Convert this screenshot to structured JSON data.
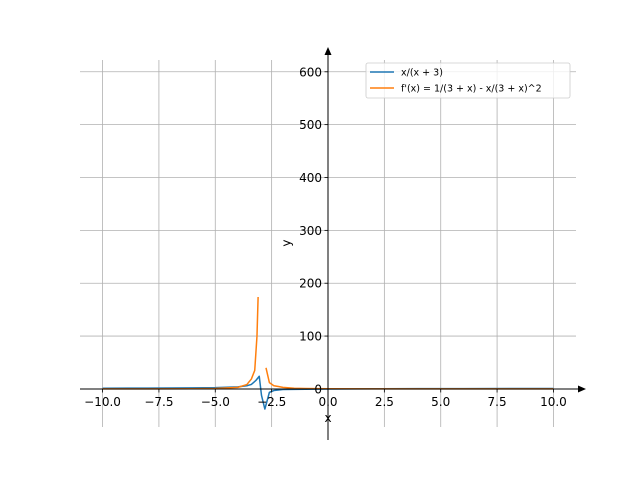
{
  "chart_data": {
    "type": "line",
    "xlabel": "x",
    "ylabel": "y",
    "xlim": [
      -11.0,
      11.0
    ],
    "ylim": [
      -72,
      645
    ],
    "x_ticks": [
      -10.0,
      -7.5,
      -5.0,
      -2.5,
      0.0,
      2.5,
      5.0,
      7.5,
      10.0
    ],
    "x_tick_labels": [
      "−10.0",
      "−7.5",
      "−5.0",
      "−2.5",
      "0.0",
      "2.5",
      "5.0",
      "7.5",
      "10.0"
    ],
    "y_ticks": [
      0,
      100,
      200,
      300,
      400,
      500,
      600
    ],
    "y_tick_labels": [
      "0",
      "100",
      "200",
      "300",
      "400",
      "500",
      "600"
    ],
    "grid": true,
    "legend_position": "top-right",
    "series": [
      {
        "name": "x/(x + 3)",
        "color": "#1f77b4",
        "x": [
          -10,
          -8,
          -6,
          -5,
          -4,
          -3.6,
          -3.4,
          -3.2,
          -3.05,
          -2.95,
          -2.8,
          -2.6,
          -2.4,
          -2,
          -1,
          0,
          2,
          4,
          6,
          8,
          10
        ],
        "y": [
          1.43,
          1.6,
          2.0,
          2.5,
          4.0,
          6.0,
          8.5,
          16.0,
          24.0,
          -12.0,
          -38.0,
          -6.5,
          -3.0,
          -1.0,
          -0.5,
          0,
          0.4,
          0.57,
          0.67,
          0.73,
          0.77
        ]
      },
      {
        "name": "f'(x) = 1/(3 + x) - x/(3 + x)^2",
        "color": "#ff7f0e",
        "segments": [
          {
            "x": [
              -10,
              -8,
              -6,
              -5,
              -4,
              -3.6,
              -3.4,
              -3.25,
              -3.15,
              -3.1
            ],
            "y": [
              0.06,
              0.12,
              0.33,
              0.75,
              3.0,
              8.3,
              18.7,
              35.0,
              100.0,
              174.0
            ]
          },
          {
            "x": [
              -2.75,
              -2.6,
              -2.4,
              -2.2,
              -2.0,
              -1.5,
              -1.0,
              0.0,
              2.0,
              5.0,
              10.0
            ],
            "y": [
              40.0,
              12.0,
              6.0,
              4.7,
              3.0,
              1.3,
              0.75,
              0.33,
              0.12,
              0.05,
              0.02
            ]
          }
        ]
      }
    ]
  }
}
